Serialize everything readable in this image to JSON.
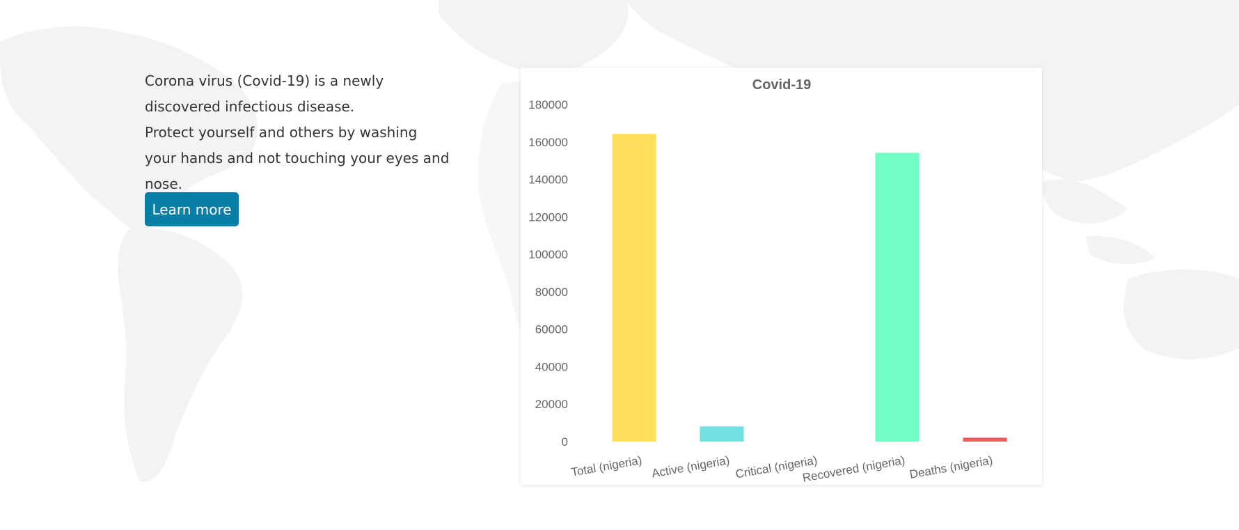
{
  "intro": {
    "line1": "Corona virus (Covid-19) is a newly discovered infectious disease.",
    "line2": "Protect yourself and others by washing your hands and not touching your eyes and nose.",
    "button_label": "Learn more"
  },
  "colors": {
    "button": "#0a7fa6",
    "text": "#333333"
  },
  "chart_data": {
    "type": "bar",
    "title": "Covid-19",
    "xlabel": "",
    "ylabel": "",
    "categories": [
      "Total (nigeria)",
      "Active (nigeria)",
      "Critical (nigeria)",
      "Recovered (nigeria)",
      "Deaths (nigeria)"
    ],
    "values": [
      164300,
      8100,
      0,
      154200,
      2060
    ],
    "colors": [
      "#ffdf5c",
      "#72dfe0",
      "#b0a0f0",
      "#72ffc4",
      "#ef5b5b"
    ],
    "ylim": [
      0,
      180000
    ],
    "yticks": [
      0,
      20000,
      40000,
      60000,
      80000,
      100000,
      120000,
      140000,
      160000,
      180000
    ],
    "grid": false,
    "legend": "none"
  }
}
